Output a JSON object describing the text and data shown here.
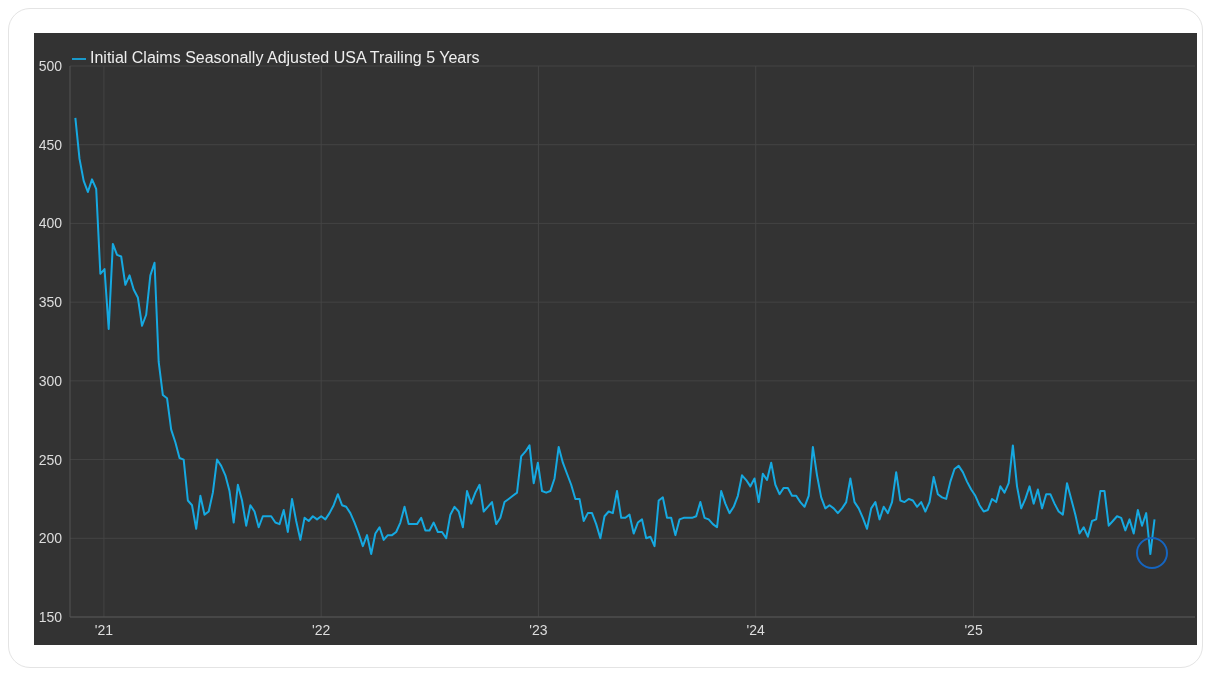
{
  "chart_data": {
    "type": "line",
    "x": [
      "2020-11-14",
      "2020-11-21",
      "2020-11-28",
      "2020-12-05",
      "2020-12-12",
      "2020-12-19",
      "2020-12-26",
      "2021-01-02",
      "2021-01-09",
      "2021-01-16",
      "2021-01-23",
      "2021-01-30",
      "2021-02-06",
      "2021-02-13",
      "2021-02-20",
      "2021-02-27",
      "2021-03-06",
      "2021-03-13",
      "2021-03-20",
      "2021-03-27",
      "2021-04-03",
      "2021-04-10",
      "2021-04-17",
      "2021-04-24",
      "2021-05-01",
      "2021-05-08",
      "2021-05-15",
      "2021-05-22",
      "2021-05-29",
      "2021-06-05",
      "2021-06-12",
      "2021-06-19",
      "2021-06-26",
      "2021-07-03",
      "2021-07-10",
      "2021-07-17",
      "2021-07-24",
      "2021-07-31",
      "2021-08-07",
      "2021-08-14",
      "2021-08-21",
      "2021-08-28",
      "2021-09-04",
      "2021-09-11",
      "2021-09-18",
      "2021-09-25",
      "2021-10-02",
      "2021-10-09",
      "2021-10-16",
      "2021-10-23",
      "2021-10-30",
      "2021-11-06",
      "2021-11-13",
      "2021-11-20",
      "2021-11-27",
      "2021-12-04",
      "2021-12-11",
      "2021-12-18",
      "2021-12-25",
      "2022-01-01",
      "2022-01-08",
      "2022-01-15",
      "2022-01-22",
      "2022-01-29",
      "2022-02-05",
      "2022-02-12",
      "2022-02-19",
      "2022-02-26",
      "2022-03-05",
      "2022-03-12",
      "2022-03-19",
      "2022-03-26",
      "2022-04-02",
      "2022-04-09",
      "2022-04-16",
      "2022-04-23",
      "2022-04-30",
      "2022-05-07",
      "2022-05-14",
      "2022-05-21",
      "2022-05-28",
      "2022-06-04",
      "2022-06-11",
      "2022-06-18",
      "2022-06-25",
      "2022-07-02",
      "2022-07-09",
      "2022-07-16",
      "2022-07-23",
      "2022-07-30",
      "2022-08-06",
      "2022-08-13",
      "2022-08-20",
      "2022-08-27",
      "2022-09-03",
      "2022-09-10",
      "2022-09-17",
      "2022-09-24",
      "2022-10-01",
      "2022-10-08",
      "2022-10-15",
      "2022-10-22",
      "2022-10-29",
      "2022-11-05",
      "2022-11-12",
      "2022-11-19",
      "2022-11-26",
      "2022-12-03",
      "2022-12-10",
      "2022-12-17",
      "2022-12-24",
      "2022-12-31",
      "2023-01-07",
      "2023-01-14",
      "2023-01-21",
      "2023-01-28",
      "2023-02-04",
      "2023-02-11",
      "2023-02-18",
      "2023-02-25",
      "2023-03-04",
      "2023-03-11",
      "2023-03-18",
      "2023-03-25",
      "2023-04-01",
      "2023-04-08",
      "2023-04-15",
      "2023-04-22",
      "2023-04-29",
      "2023-05-06",
      "2023-05-13",
      "2023-05-20",
      "2023-05-27",
      "2023-06-03",
      "2023-06-10",
      "2023-06-17",
      "2023-06-24",
      "2023-07-01",
      "2023-07-08",
      "2023-07-15",
      "2023-07-22",
      "2023-07-29",
      "2023-08-05",
      "2023-08-12",
      "2023-08-19",
      "2023-08-26",
      "2023-09-02",
      "2023-09-09",
      "2023-09-16",
      "2023-09-23",
      "2023-09-30",
      "2023-10-07",
      "2023-10-14",
      "2023-10-21",
      "2023-10-28",
      "2023-11-04",
      "2023-11-11",
      "2023-11-18",
      "2023-11-25",
      "2023-12-02",
      "2023-12-09",
      "2023-12-16",
      "2023-12-23",
      "2023-12-30",
      "2024-01-06",
      "2024-01-13",
      "2024-01-20",
      "2024-01-27",
      "2024-02-03",
      "2024-02-10",
      "2024-02-17",
      "2024-02-24",
      "2024-03-02",
      "2024-03-09",
      "2024-03-16",
      "2024-03-23",
      "2024-03-30",
      "2024-04-06",
      "2024-04-13",
      "2024-04-20",
      "2024-04-27",
      "2024-05-04",
      "2024-05-11",
      "2024-05-18",
      "2024-05-25",
      "2024-06-01",
      "2024-06-08",
      "2024-06-15",
      "2024-06-22",
      "2024-06-29",
      "2024-07-06",
      "2024-07-13",
      "2024-07-20",
      "2024-07-27",
      "2024-08-03",
      "2024-08-10",
      "2024-08-17",
      "2024-08-24",
      "2024-08-31",
      "2024-09-07",
      "2024-09-14",
      "2024-09-21",
      "2024-09-28",
      "2024-10-05",
      "2024-10-12",
      "2024-10-19",
      "2024-10-26",
      "2024-11-02",
      "2024-11-09",
      "2024-11-16",
      "2024-11-23",
      "2024-11-30",
      "2024-12-07",
      "2024-12-14",
      "2024-12-21",
      "2024-12-28",
      "2025-01-04",
      "2025-01-11",
      "2025-01-18",
      "2025-01-25",
      "2025-02-01",
      "2025-02-08",
      "2025-02-15",
      "2025-02-22",
      "2025-03-01",
      "2025-03-08",
      "2025-03-15",
      "2025-03-22",
      "2025-03-29",
      "2025-04-05",
      "2025-04-12",
      "2025-04-19",
      "2025-04-26",
      "2025-05-03",
      "2025-05-10",
      "2025-05-17",
      "2025-05-24",
      "2025-05-31",
      "2025-06-07",
      "2025-06-14",
      "2025-06-21",
      "2025-06-28",
      "2025-07-05",
      "2025-07-12",
      "2025-07-19",
      "2025-07-26",
      "2025-08-02",
      "2025-08-09",
      "2025-08-16",
      "2025-08-23",
      "2025-08-30",
      "2025-09-06",
      "2025-09-13",
      "2025-09-20",
      "2025-09-27",
      "2025-10-04",
      "2025-10-11",
      "2025-10-18",
      "2025-10-25",
      "2025-11-01"
    ],
    "series": [
      {
        "name": "Initial Claims Seasonally Adjusted USA Trailing 5 Years",
        "color": "#16a9e1",
        "values": [
          467,
          441,
          427,
          420,
          428,
          422,
          368,
          371,
          333,
          387,
          380,
          379,
          361,
          367,
          358,
          353,
          335,
          342,
          367,
          375,
          312,
          291,
          289,
          269,
          261,
          251,
          250,
          224,
          221,
          206,
          227,
          215,
          217,
          229,
          250,
          246,
          240,
          230,
          210,
          234,
          224,
          208,
          221,
          217,
          207,
          214,
          214,
          214,
          210,
          209,
          218,
          204,
          225,
          211,
          199,
          213,
          211,
          214,
          212,
          214,
          212,
          216,
          221,
          228,
          221,
          220,
          216,
          210,
          203,
          195,
          202,
          190,
          203,
          207,
          199,
          202,
          202,
          204,
          210,
          220,
          209,
          209,
          209,
          213,
          205,
          205,
          210,
          204,
          204,
          200,
          215,
          220,
          217,
          207,
          230,
          222,
          229,
          234,
          217,
          220,
          223,
          209,
          213,
          223,
          225,
          227,
          229,
          252,
          255,
          259,
          235,
          248,
          230,
          229,
          230,
          238,
          258,
          248,
          241,
          234,
          225,
          225,
          211,
          216,
          216,
          209,
          200,
          214,
          217,
          216,
          230,
          213,
          213,
          215,
          203,
          210,
          212,
          200,
          201,
          195,
          224,
          226,
          213,
          213,
          202,
          212,
          213,
          213,
          213,
          214,
          223,
          213,
          212,
          209,
          207,
          230,
          222,
          216,
          220,
          227,
          240,
          237,
          233,
          238,
          223,
          241,
          237,
          248,
          234,
          228,
          232,
          232,
          227,
          227,
          223,
          220,
          227,
          258,
          240,
          226,
          219,
          221,
          219,
          216,
          219,
          223,
          238,
          223,
          219,
          213,
          206,
          219,
          223,
          212,
          220,
          216,
          223,
          242,
          224,
          223,
          225,
          224,
          220,
          223,
          217,
          223,
          239,
          228,
          226,
          225,
          236,
          244,
          246,
          242,
          236,
          231,
          227,
          221,
          217,
          218,
          225,
          223,
          233,
          229,
          235,
          259,
          233,
          219,
          225,
          233,
          222,
          231,
          219,
          228,
          228,
          222,
          217,
          215,
          235,
          225,
          215,
          203,
          207,
          201,
          211,
          212,
          230,
          230,
          208,
          211,
          214,
          213,
          205,
          212,
          203,
          218,
          208,
          216,
          190,
          212
        ]
      }
    ],
    "xlim": [
      "2020-11-05",
      "2026-01-08"
    ],
    "xticks": [
      {
        "value": "2021-01-01",
        "label": "'21"
      },
      {
        "value": "2022-01-01",
        "label": "'22"
      },
      {
        "value": "2023-01-01",
        "label": "'23"
      },
      {
        "value": "2024-01-01",
        "label": "'24"
      },
      {
        "value": "2025-01-01",
        "label": "'25"
      }
    ],
    "ylim": [
      150,
      500
    ],
    "yticks": [
      150,
      200,
      250,
      300,
      350,
      400,
      450,
      500
    ],
    "grid": true,
    "legend": "top left",
    "marker": "none",
    "line_style": "solid"
  }
}
